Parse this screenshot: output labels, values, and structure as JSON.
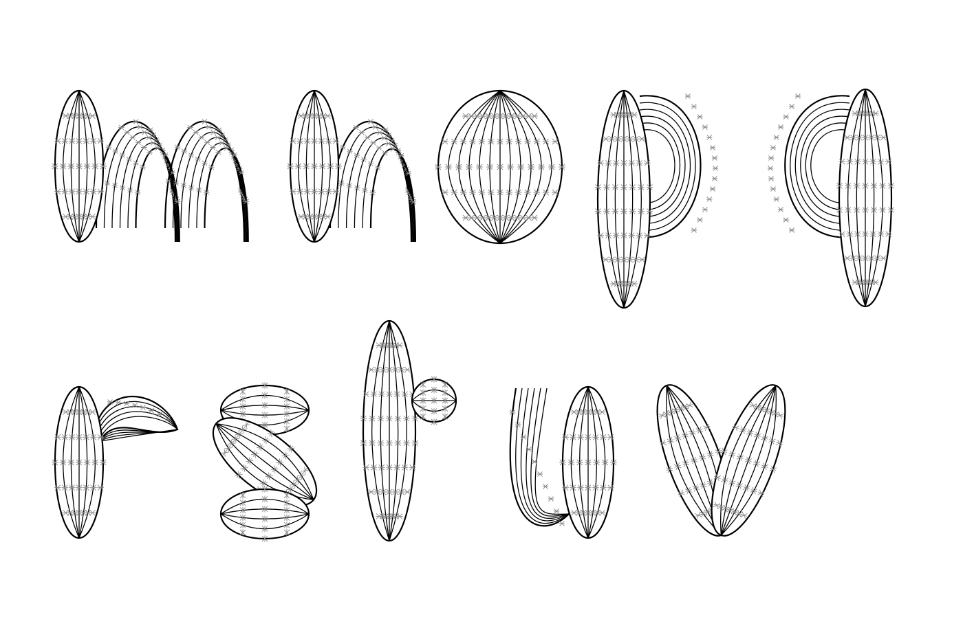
{
  "artwork": {
    "rows": [
      {
        "letters": [
          "m",
          "n",
          "o",
          "p",
          "q"
        ]
      },
      {
        "letters": [
          "r",
          "s",
          "t",
          "u",
          "v"
        ]
      }
    ],
    "stroke_color": "#000000",
    "spine_color": "#888888",
    "background": "#ffffff"
  }
}
